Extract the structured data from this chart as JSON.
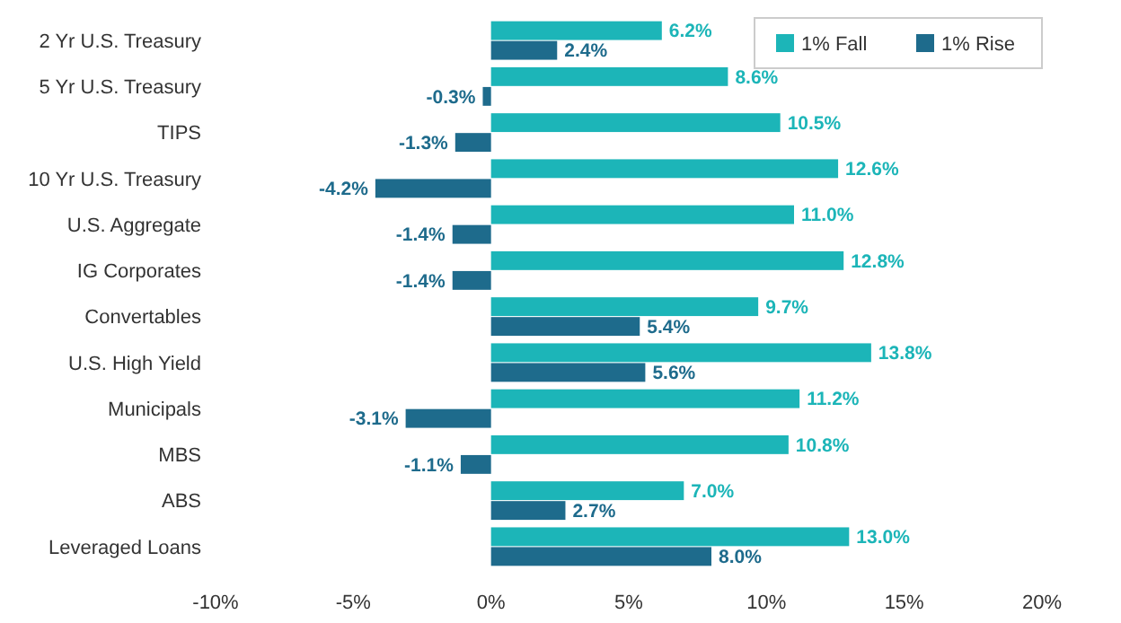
{
  "chart_data": {
    "type": "bar",
    "orientation": "horizontal",
    "categories": [
      "2 Yr U.S. Treasury",
      "5 Yr U.S. Treasury",
      "TIPS",
      "10 Yr U.S. Treasury",
      "U.S. Aggregate",
      "IG Corporates",
      "Convertables",
      "U.S. High Yield",
      "Municipals",
      "MBS",
      "ABS",
      "Leveraged Loans"
    ],
    "series": [
      {
        "name": "1% Fall",
        "color": "#1cb5b8",
        "values": [
          6.2,
          8.6,
          10.5,
          12.6,
          11.0,
          12.8,
          9.7,
          13.8,
          11.2,
          10.8,
          7.0,
          13.0
        ],
        "value_labels": [
          "6.2%",
          "8.6%",
          "10.5%",
          "12.6%",
          "11.0%",
          "12.8%",
          "9.7%",
          "13.8%",
          "11.2%",
          "10.8%",
          "7.0%",
          "13.0%"
        ]
      },
      {
        "name": "1% Rise",
        "color": "#1e6b8c",
        "values": [
          2.4,
          -0.3,
          -1.3,
          -4.2,
          -1.4,
          -1.4,
          5.4,
          5.6,
          -3.1,
          -1.1,
          2.7,
          8.0
        ],
        "value_labels": [
          "2.4%",
          "-0.3%",
          "-1.3%",
          "-4.2%",
          "-1.4%",
          "-1.4%",
          "5.4%",
          "5.6%",
          "-3.1%",
          "-1.1%",
          "2.7%",
          "8.0%"
        ]
      }
    ],
    "xlim": [
      -10,
      20
    ],
    "xticks": [
      {
        "value": -10,
        "label": "-10%"
      },
      {
        "value": -5,
        "label": "-5%"
      },
      {
        "value": 0,
        "label": "0%"
      },
      {
        "value": 5,
        "label": "5%"
      },
      {
        "value": 10,
        "label": "10%"
      },
      {
        "value": 15,
        "label": "15%"
      },
      {
        "value": 20,
        "label": "20%"
      }
    ],
    "legend": "top right",
    "grid": false
  }
}
